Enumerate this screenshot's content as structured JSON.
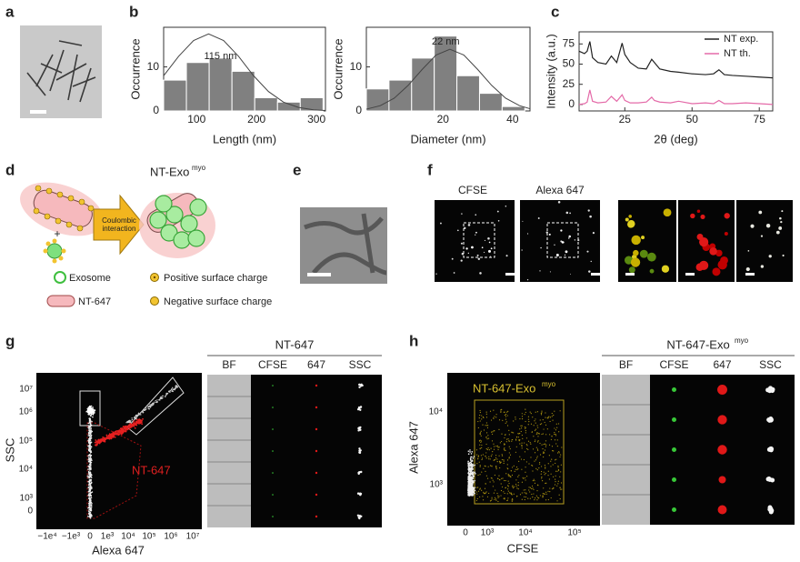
{
  "chart_data": [
    {
      "type": "histogram",
      "xlabel": "Length (nm)",
      "ylabel": "Occurrence",
      "bins": [
        45,
        83,
        121,
        159,
        197,
        235,
        273,
        311
      ],
      "values": [
        7,
        11,
        12,
        9,
        3,
        2,
        3
      ],
      "color": "#808080",
      "xlim": [
        45,
        315
      ],
      "xticks": [
        100,
        200,
        300
      ],
      "ylim": [
        0,
        19
      ],
      "yticks": [
        0,
        10
      ],
      "fit": {
        "x": [
          45,
          70,
          95,
          120,
          145,
          170,
          195,
          220,
          245,
          270,
          295,
          315
        ],
        "values": [
          8.0,
          12.4,
          16.0,
          17.5,
          16.0,
          12.4,
          8.0,
          4.4,
          2.0,
          0.8,
          0.25,
          0.1
        ]
      },
      "annotation": "115 nm"
    },
    {
      "type": "histogram",
      "xlabel": "Diameter (nm)",
      "ylabel": "Occurrence",
      "bins": [
        -2,
        4.5,
        11,
        17.5,
        24,
        30.5,
        37,
        43.5
      ],
      "values": [
        5,
        7,
        12,
        17,
        8,
        4,
        1
      ],
      "color": "#808080",
      "xlim": [
        -2,
        45
      ],
      "xticks": [
        20,
        40
      ],
      "ylim": [
        0,
        19
      ],
      "yticks": [
        0,
        10
      ],
      "fit": {
        "x": [
          -2,
          2,
          6,
          10,
          14,
          18,
          22,
          26,
          30,
          34,
          38,
          42,
          45
        ],
        "values": [
          0.4,
          1.2,
          2.9,
          5.8,
          9.4,
          12.7,
          14,
          12.7,
          9.4,
          5.8,
          2.9,
          1.2,
          0.5
        ]
      },
      "annotation": "22 nm"
    },
    {
      "type": "line",
      "xlabel": "2θ (deg)",
      "ylabel": "Intensity (a.u.)",
      "x": [
        8,
        10,
        11,
        12,
        13,
        15,
        18,
        20,
        22,
        24,
        25,
        27,
        30,
        33,
        35,
        36,
        38,
        42,
        45,
        50,
        55,
        58,
        60,
        62,
        65,
        70,
        75,
        80
      ],
      "series": [
        {
          "name": "NT exp.",
          "color": "#222222",
          "values": [
            66,
            63,
            66,
            78,
            58,
            52,
            50,
            60,
            52,
            76,
            62,
            52,
            45,
            44,
            56,
            52,
            44,
            41,
            40,
            38,
            37,
            38,
            43,
            37,
            36,
            35,
            34,
            33
          ]
        },
        {
          "name": "NT th.",
          "color": "#e46aa8",
          "values": [
            0,
            1,
            3,
            18,
            4,
            2,
            3,
            10,
            4,
            12,
            5,
            2,
            2,
            3,
            9,
            5,
            3,
            2,
            4,
            1,
            2,
            1,
            5,
            1,
            1,
            2,
            1,
            0
          ]
        }
      ],
      "xlim": [
        8,
        80
      ],
      "xticks": [
        25,
        50,
        75
      ],
      "ylim": [
        -8,
        90
      ],
      "yticks": [
        0,
        25,
        50,
        75
      ],
      "legend": "top-right"
    }
  ],
  "panel_labels": [
    "a",
    "b",
    "c",
    "d",
    "e",
    "f",
    "g",
    "h"
  ],
  "d": {
    "title": "NT-Exo",
    "title_sup": "myo",
    "arrow_text": [
      "Coulombic",
      "interaction"
    ],
    "plus": "+",
    "legend": [
      "Exosome",
      "Positive surface charge",
      "NT-647",
      "Negative surface charge"
    ]
  },
  "f": {
    "channels": [
      "CFSE",
      "Alexa 647"
    ]
  },
  "g": {
    "y_label": "SSC",
    "x_label": "Alexa 647",
    "yticks": [
      "10⁷",
      "10⁶",
      "10⁵",
      "10⁴",
      "10³",
      "0"
    ],
    "xticks": [
      "−1e⁴",
      "−1e³",
      "0",
      "1e³",
      "10⁴",
      "10⁵",
      "10⁶",
      "10⁷"
    ],
    "gate": "NT-647",
    "table_title": "NT-647",
    "columns": [
      "BF",
      "CFSE",
      "647",
      "SSC"
    ]
  },
  "h": {
    "y_label": "Alexa 647",
    "x_label": "CFSE",
    "yticks": [
      "10⁴",
      "10³"
    ],
    "xticks": [
      "0",
      "10³",
      "10⁴",
      "10⁵"
    ],
    "gate": "NT-647-Exo",
    "gate_sup": "myo",
    "table_title": "NT-647-Exo",
    "table_title_sup": "myo",
    "columns": [
      "BF",
      "CFSE",
      "647",
      "SSC"
    ]
  }
}
